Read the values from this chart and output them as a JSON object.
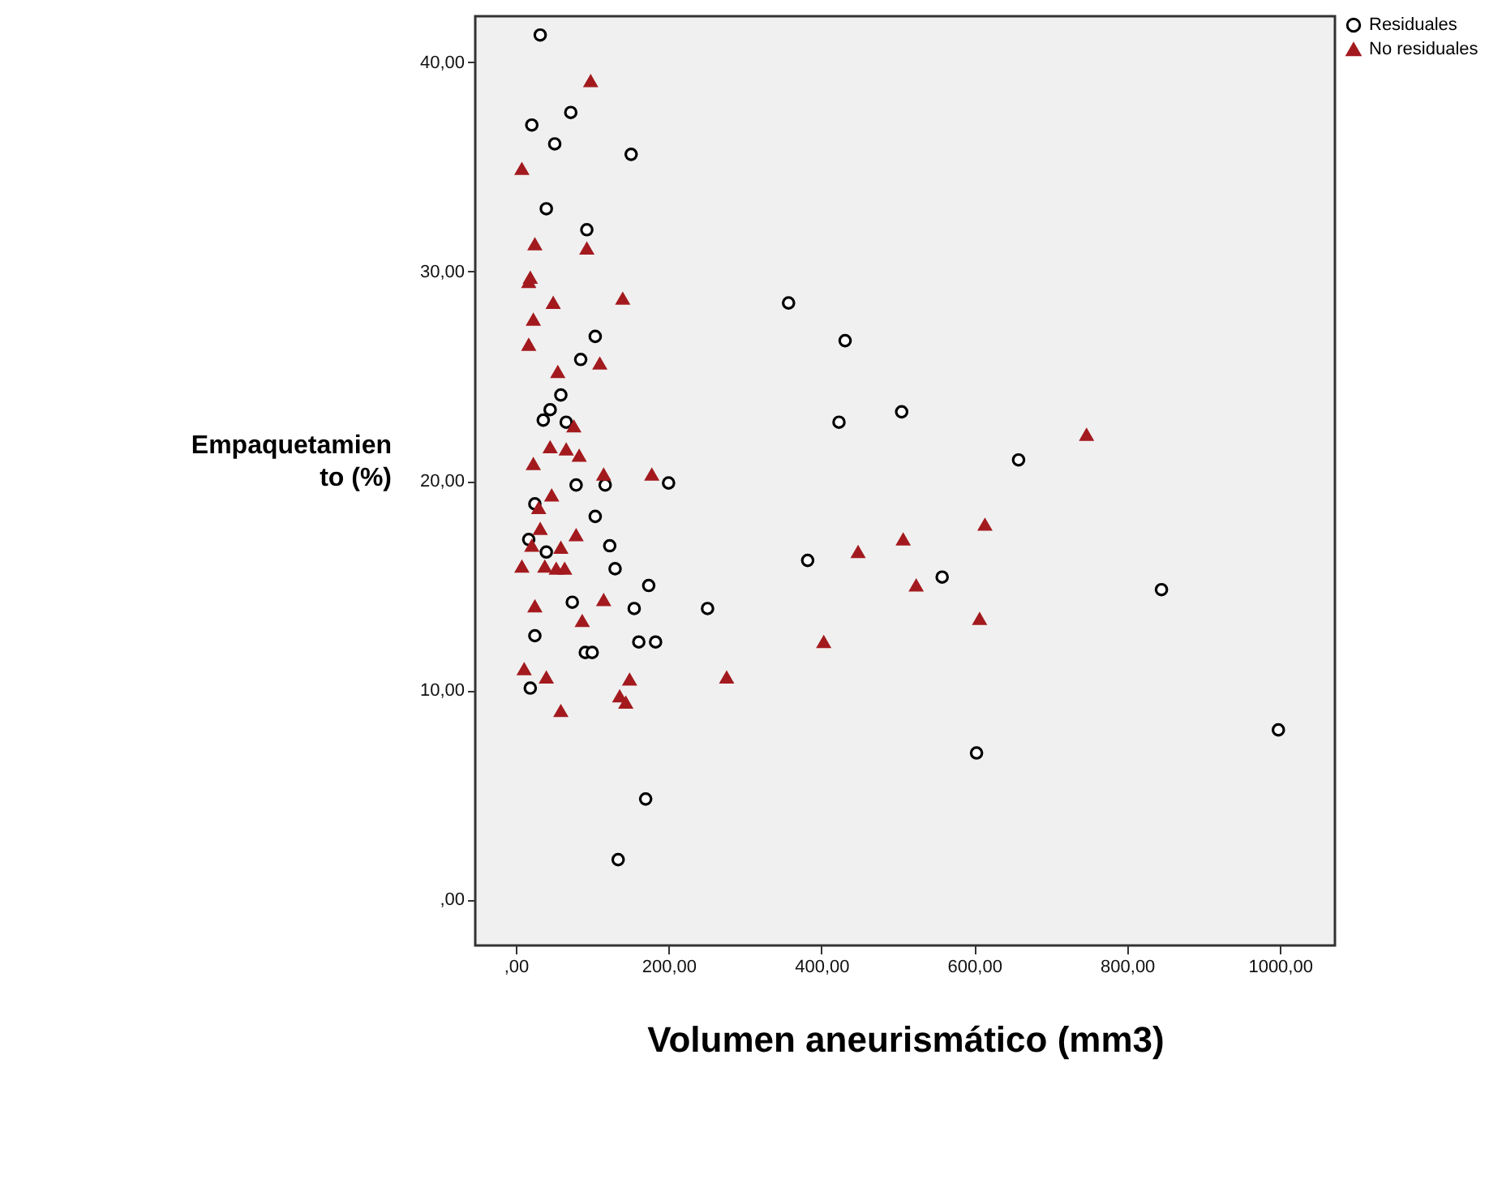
{
  "chart_data": {
    "type": "scatter",
    "xlabel": "Volumen aneurismático (mm3)",
    "ylabel": "Empaquetamiento (%)",
    "xlim": [
      -53,
      1072
    ],
    "ylim": [
      -2.2,
      42.2
    ],
    "xticks": [
      {
        "value": 0,
        "label": ",00"
      },
      {
        "value": 200,
        "label": "200,00"
      },
      {
        "value": 400,
        "label": "400,00"
      },
      {
        "value": 600,
        "label": "600,00"
      },
      {
        "value": 800,
        "label": "800,00"
      },
      {
        "value": 1000,
        "label": "1000,00"
      }
    ],
    "yticks": [
      {
        "value": 0,
        "label": ",00"
      },
      {
        "value": 10,
        "label": "10,00"
      },
      {
        "value": 20,
        "label": "20,00"
      },
      {
        "value": 30,
        "label": "30,00"
      },
      {
        "value": 40,
        "label": "40,00"
      }
    ],
    "grid": false,
    "legend": "top right",
    "series": [
      {
        "name": "Residuales",
        "color": "#000000",
        "marker": "circle",
        "x": [
          32,
          21,
          72,
          51,
          151,
          40,
          93,
          357,
          431,
          104,
          85,
          59,
          45,
          36,
          66,
          423,
          505,
          658,
          79,
          117,
          200,
          25,
          104,
          17,
          123,
          40,
          382,
          130,
          558,
          174,
          845,
          74,
          155,
          251,
          25,
          161,
          183,
          91,
          100,
          19,
          603,
          998,
          170,
          134
        ],
        "values": [
          41.3,
          37.0,
          37.6,
          36.1,
          35.6,
          33.0,
          32.0,
          28.5,
          26.7,
          26.9,
          25.8,
          24.1,
          23.4,
          22.9,
          22.8,
          22.8,
          23.3,
          21.0,
          19.8,
          19.8,
          19.9,
          18.9,
          18.3,
          17.2,
          16.9,
          16.6,
          16.2,
          15.8,
          15.4,
          15.0,
          14.8,
          14.2,
          13.9,
          13.9,
          12.6,
          12.3,
          12.3,
          11.8,
          11.8,
          10.1,
          7.0,
          8.1,
          4.8,
          1.9
        ]
      },
      {
        "name": "No residuales",
        "color": "#a31a1e",
        "marker": "triangle",
        "x": [
          98,
          8,
          25,
          93,
          19,
          17,
          49,
          140,
          23,
          17,
          110,
          55,
          76,
          747,
          45,
          66,
          83,
          23,
          178,
          115,
          47,
          30,
          614,
          32,
          507,
          79,
          21,
          59,
          448,
          8,
          38,
          53,
          64,
          524,
          115,
          25,
          607,
          87,
          403,
          276,
          11,
          40,
          149,
          136,
          144,
          59
        ],
        "values": [
          39.1,
          34.9,
          31.3,
          31.1,
          29.7,
          29.5,
          28.5,
          28.7,
          27.7,
          26.5,
          25.6,
          25.2,
          22.6,
          22.2,
          21.6,
          21.5,
          21.2,
          20.8,
          20.3,
          20.3,
          19.3,
          18.7,
          17.9,
          17.7,
          17.2,
          17.4,
          16.9,
          16.8,
          16.6,
          15.9,
          15.9,
          15.8,
          15.8,
          15.0,
          14.3,
          14.0,
          13.4,
          13.3,
          12.3,
          10.6,
          11.0,
          10.6,
          10.5,
          9.7,
          9.4,
          9.0
        ]
      }
    ]
  }
}
